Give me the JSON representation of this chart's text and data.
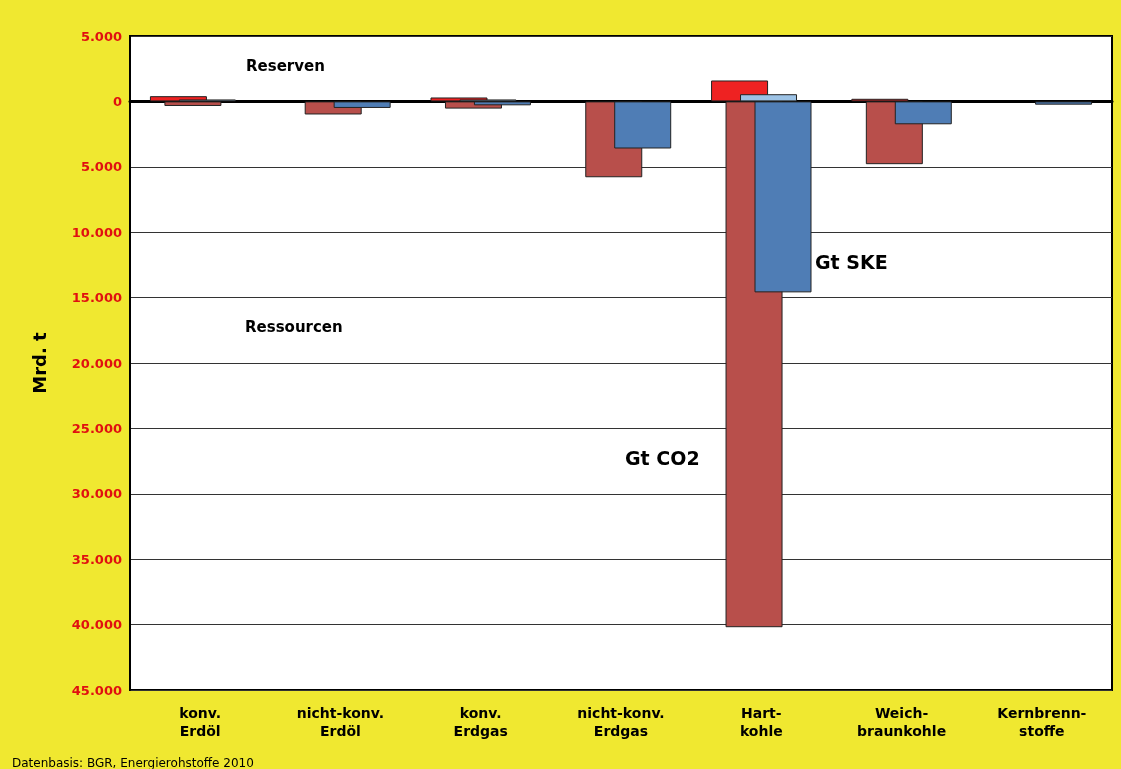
{
  "chart_data": {
    "type": "bar",
    "ylabel": "Mrd. t",
    "categories": [
      "konv.\nErdöl",
      "nicht-konv.\nErdöl",
      "konv.\nErdgas",
      "nicht-konv.\nErdgas",
      "Hart-\nkohle",
      "Weich-\nbraunkohle",
      "Kernbrenn-\nstoffe"
    ],
    "series": [
      {
        "color": "#ee2222",
        "values": [
          400,
          null,
          300,
          null,
          1600,
          200,
          null
        ]
      },
      {
        "color": "#b84f4b",
        "values": [
          -350,
          -1000,
          -550,
          -5800,
          -40200,
          -4800,
          null
        ]
      },
      {
        "color": "#9dc3e6",
        "values": [
          150,
          null,
          150,
          null,
          550,
          null,
          null
        ]
      },
      {
        "color": "#4f7db5",
        "values": [
          null,
          -500,
          -300,
          -3600,
          -14600,
          -1750,
          -250
        ]
      }
    ],
    "ylim": [
      -45000,
      5000
    ],
    "yticks": [
      {
        "value": 5000,
        "label": "5.000"
      },
      0,
      {
        "value": -5000,
        "label": "5.000"
      },
      {
        "value": -10000,
        "label": "10.000"
      },
      {
        "value": -15000,
        "label": "15.000"
      },
      {
        "value": -20000,
        "label": "20.000"
      },
      {
        "value": -25000,
        "label": "25.000"
      },
      {
        "value": -30000,
        "label": "30.000"
      },
      {
        "value": -35000,
        "label": "35.000"
      },
      {
        "value": -40000,
        "label": "40.000"
      },
      {
        "value": -45000,
        "label": "45.000"
      }
    ],
    "grid": "y",
    "annotations": [
      "Reserven",
      "Ressourcen",
      "Gt SKE",
      "Gt CO2",
      "Datenbasis: BGR, Energierohstoffe 2010"
    ]
  }
}
